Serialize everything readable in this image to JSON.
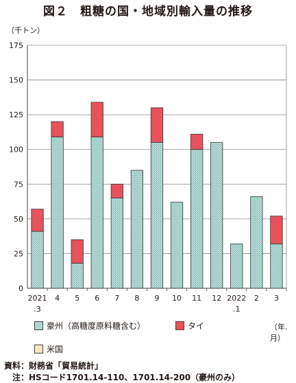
{
  "title": "図２　粗糖の国・地域別輸入量の推移",
  "unit_label": "（千トン）",
  "year_month_label": "（年.月）",
  "source": {
    "line1": "資料：財務省「貿易統計」",
    "line2": "　注：HSコード1701.14-110、1701.14-200（豪州のみ）"
  },
  "colors": {
    "australia_fill": "#b9dcd8",
    "australia_pattern": "#6fa8a2",
    "thailand": "#e8525a",
    "usa": "#f7e7c4"
  },
  "chart_data": {
    "type": "bar",
    "stacked": true,
    "categories": [
      "2021\n.3",
      "4",
      "5",
      "6",
      "7",
      "8",
      "9",
      "10",
      "11",
      "12",
      "2022\n.1",
      "2",
      "3"
    ],
    "series": [
      {
        "name": "豪州（高糖度原料糖含む）",
        "values": [
          41,
          109,
          18,
          109,
          65,
          85,
          105,
          62,
          100,
          105,
          32,
          66,
          32
        ]
      },
      {
        "name": "タイ",
        "values": [
          16,
          11,
          17,
          25,
          10,
          0,
          25,
          0,
          11,
          0,
          0,
          0,
          20
        ]
      },
      {
        "name": "米国",
        "values": [
          0,
          0,
          0,
          0,
          0,
          0,
          0,
          0,
          0,
          0,
          0,
          0,
          0
        ]
      }
    ],
    "y_ticks": [
      0,
      25,
      50,
      75,
      100,
      125,
      150,
      175
    ],
    "ylim": [
      0,
      175
    ],
    "grid": true,
    "legend_position": "bottom"
  }
}
